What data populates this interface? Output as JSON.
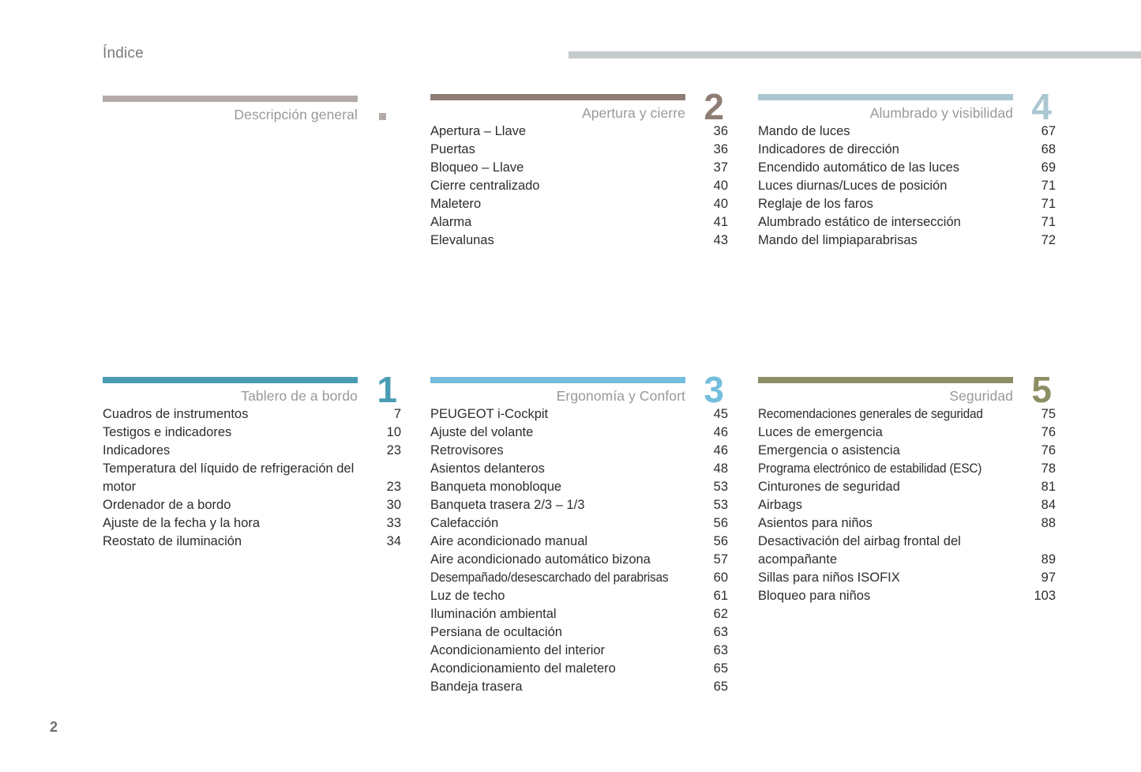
{
  "page": {
    "title": "Índice",
    "page_number": "2"
  },
  "colors": {
    "header_rule": "#c5cacd",
    "section_title_text": "#97999b",
    "item_text": "#2d2d2d"
  },
  "sections": {
    "descripcion": {
      "title": "Descripción general",
      "number": "",
      "color": "#b3abaa",
      "items": []
    },
    "tablero": {
      "title": "Tablero de a bordo",
      "number": "1",
      "color": "#4a9cb4",
      "items": [
        {
          "label": "Cuadros de instrumentos",
          "page": "7"
        },
        {
          "label": "Testigos e indicadores",
          "page": "10"
        },
        {
          "label": "Indicadores",
          "page": "23"
        },
        {
          "label": "Temperatura del líquido de refrigeración del motor",
          "page": "23"
        },
        {
          "label": "Ordenador de a bordo",
          "page": "30"
        },
        {
          "label": "Ajuste de la fecha y la hora",
          "page": "33"
        },
        {
          "label": "Reostato de iluminación",
          "page": "34"
        }
      ]
    },
    "apertura": {
      "title": "Apertura y cierre",
      "number": "2",
      "color": "#8e7d74",
      "items": [
        {
          "label": "Apertura – Llave",
          "page": "36"
        },
        {
          "label": "Puertas",
          "page": "36"
        },
        {
          "label": "Bloqueo – Llave",
          "page": "37"
        },
        {
          "label": "Cierre centralizado",
          "page": "40"
        },
        {
          "label": "Maletero",
          "page": "40"
        },
        {
          "label": "Alarma",
          "page": "41"
        },
        {
          "label": "Elevalunas",
          "page": "43"
        }
      ]
    },
    "ergonomia": {
      "title": "Ergonomía y Confort",
      "number": "3",
      "color": "#74bddc",
      "items": [
        {
          "label": "PEUGEOT i-Cockpit",
          "page": "45"
        },
        {
          "label": "Ajuste del volante",
          "page": "46"
        },
        {
          "label": "Retrovisores",
          "page": "46"
        },
        {
          "label": "Asientos delanteros",
          "page": "48"
        },
        {
          "label": "Banqueta monobloque",
          "page": "53"
        },
        {
          "label": "Banqueta trasera 2/3 – 1/3",
          "page": "53"
        },
        {
          "label": "Calefacción",
          "page": "56"
        },
        {
          "label": "Aire acondicionado manual",
          "page": "56"
        },
        {
          "label": "Aire acondicionado automático bizona",
          "page": "57"
        },
        {
          "label": "Desempañado/desescarchado del parabrisas",
          "page": "60",
          "condensed": true
        },
        {
          "label": "Luz de techo",
          "page": "61"
        },
        {
          "label": "Iluminación ambiental",
          "page": "62"
        },
        {
          "label": "Persiana de ocultación",
          "page": "63"
        },
        {
          "label": "Acondicionamiento del interior",
          "page": "63"
        },
        {
          "label": "Acondicionamiento del maletero",
          "page": "65"
        },
        {
          "label": "Bandeja trasera",
          "page": "65"
        }
      ]
    },
    "alumbrado": {
      "title": "Alumbrado y visibilidad",
      "number": "4",
      "color": "#abc7d1",
      "items": [
        {
          "label": "Mando de luces",
          "page": "67"
        },
        {
          "label": "Indicadores de dirección",
          "page": "68"
        },
        {
          "label": "Encendido automático de las luces",
          "page": "69"
        },
        {
          "label": "Luces diurnas/Luces de posición",
          "page": "71"
        },
        {
          "label": "Reglaje de los faros",
          "page": "71"
        },
        {
          "label": "Alumbrado estático de intersección",
          "page": "71"
        },
        {
          "label": "Mando del limpiaparabrisas",
          "page": "72"
        }
      ]
    },
    "seguridad": {
      "title": "Seguridad",
      "number": "5",
      "color": "#8e8e66",
      "items": [
        {
          "label": "Recomendaciones generales de seguridad",
          "page": "75",
          "condensed": true
        },
        {
          "label": "Luces de emergencia",
          "page": "76"
        },
        {
          "label": "Emergencia o asistencia",
          "page": "76"
        },
        {
          "label": "Programa electrónico de estabilidad (ESC)",
          "page": "78",
          "condensed": true
        },
        {
          "label": "Cinturones de seguridad",
          "page": "81"
        },
        {
          "label": "Airbags",
          "page": "84"
        },
        {
          "label": "Asientos para niños",
          "page": "88"
        },
        {
          "label": "Desactivación del airbag frontal del acompañante",
          "page": "89"
        },
        {
          "label": "Sillas para niños ISOFIX",
          "page": "97"
        },
        {
          "label": "Bloqueo para niños",
          "page": "103"
        }
      ]
    }
  }
}
